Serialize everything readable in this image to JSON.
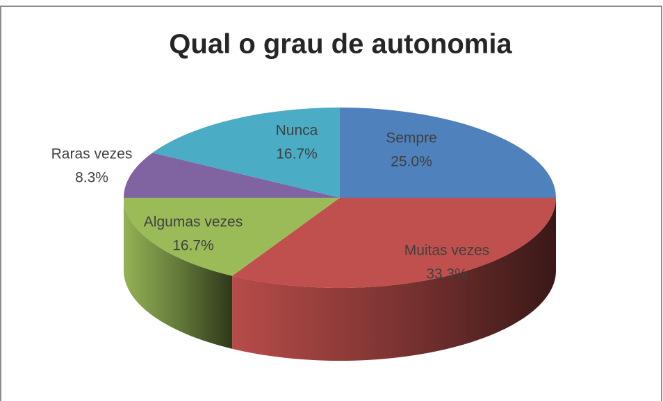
{
  "chart_data": {
    "type": "pie",
    "title": "Qual o grau de autonomia",
    "categories": [
      "Sempre",
      "Muitas vezes",
      "Algumas vezes",
      "Raras vezes",
      "Nunca"
    ],
    "values": [
      25,
      33.3,
      16.7,
      8.3,
      16.7
    ],
    "value_labels": [
      "25.0%",
      "33.3%",
      "16.7%",
      "8.3%",
      "16.7%"
    ],
    "colors": [
      "#4f81bd",
      "#c0504d",
      "#9bbb59",
      "#8064a2",
      "#4bacc6"
    ]
  }
}
